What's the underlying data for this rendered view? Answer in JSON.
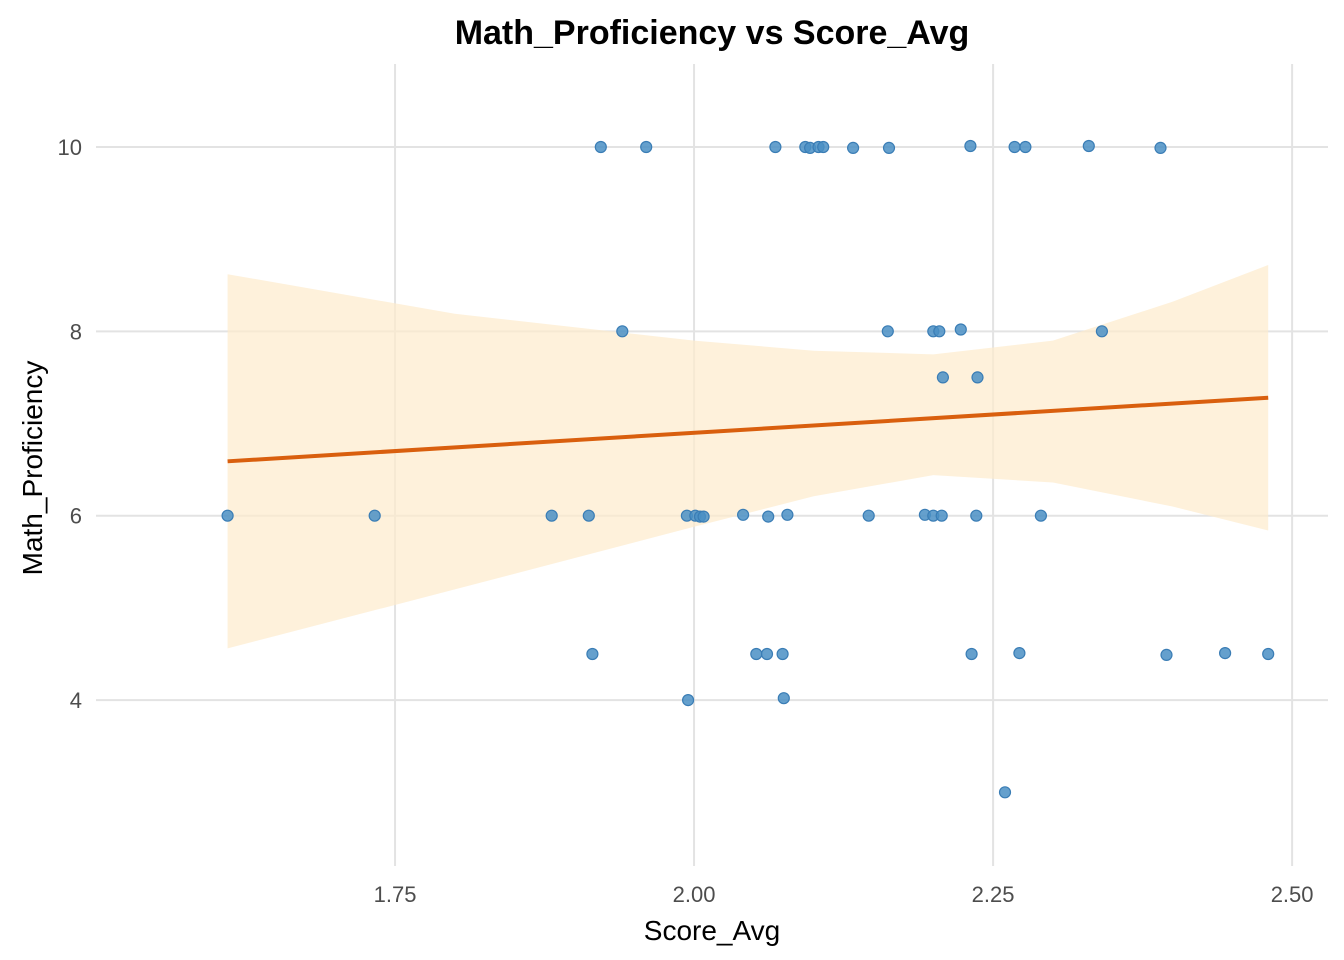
{
  "chart_data": {
    "type": "scatter",
    "title": "Math_Proficiency vs Score_Avg",
    "xlabel": "Score_Avg",
    "ylabel": "Math_Proficiency",
    "xlim": [
      1.5,
      2.53
    ],
    "ylim": [
      2.2,
      10.9
    ],
    "x_ticks": [
      1.75,
      2.0,
      2.25,
      2.5
    ],
    "x_tick_labels": [
      "1.75",
      "2.00",
      "2.25",
      "2.50"
    ],
    "y_ticks": [
      4,
      6,
      8,
      10
    ],
    "y_tick_labels": [
      "4",
      "6",
      "8",
      "10"
    ],
    "grid": true,
    "legend": "none",
    "colors": {
      "point": "#4a8fc4",
      "point_stroke": "#3a7db5",
      "trend_line": "#d95f0e",
      "confidence_band": "#fdebcc"
    },
    "points": [
      {
        "x": 1.922,
        "y": 10.0
      },
      {
        "x": 1.96,
        "y": 10.0
      },
      {
        "x": 2.068,
        "y": 10.0
      },
      {
        "x": 2.093,
        "y": 10.0
      },
      {
        "x": 2.097,
        "y": 9.99
      },
      {
        "x": 2.104,
        "y": 10.0
      },
      {
        "x": 2.108,
        "y": 10.0
      },
      {
        "x": 2.133,
        "y": 9.99
      },
      {
        "x": 2.163,
        "y": 9.99
      },
      {
        "x": 2.231,
        "y": 10.01
      },
      {
        "x": 2.268,
        "y": 10.0
      },
      {
        "x": 2.277,
        "y": 10.0
      },
      {
        "x": 2.33,
        "y": 10.01
      },
      {
        "x": 2.39,
        "y": 9.99
      },
      {
        "x": 1.94,
        "y": 8.0
      },
      {
        "x": 2.162,
        "y": 8.0
      },
      {
        "x": 2.2,
        "y": 8.0
      },
      {
        "x": 2.205,
        "y": 8.0
      },
      {
        "x": 2.223,
        "y": 8.02
      },
      {
        "x": 2.341,
        "y": 8.0
      },
      {
        "x": 2.208,
        "y": 7.5
      },
      {
        "x": 2.237,
        "y": 7.5
      },
      {
        "x": 1.61,
        "y": 6.0
      },
      {
        "x": 1.733,
        "y": 6.0
      },
      {
        "x": 1.881,
        "y": 6.0
      },
      {
        "x": 1.912,
        "y": 6.0
      },
      {
        "x": 1.994,
        "y": 6.0
      },
      {
        "x": 2.001,
        "y": 6.0
      },
      {
        "x": 2.005,
        "y": 5.99
      },
      {
        "x": 2.008,
        "y": 5.99
      },
      {
        "x": 2.041,
        "y": 6.01
      },
      {
        "x": 2.062,
        "y": 5.99
      },
      {
        "x": 2.078,
        "y": 6.01
      },
      {
        "x": 2.146,
        "y": 6.0
      },
      {
        "x": 2.193,
        "y": 6.01
      },
      {
        "x": 2.2,
        "y": 6.0
      },
      {
        "x": 2.207,
        "y": 6.0
      },
      {
        "x": 2.236,
        "y": 6.0
      },
      {
        "x": 2.29,
        "y": 6.0
      },
      {
        "x": 1.915,
        "y": 4.5
      },
      {
        "x": 2.052,
        "y": 4.5
      },
      {
        "x": 2.061,
        "y": 4.5
      },
      {
        "x": 2.074,
        "y": 4.5
      },
      {
        "x": 2.232,
        "y": 4.5
      },
      {
        "x": 2.272,
        "y": 4.51
      },
      {
        "x": 2.395,
        "y": 4.49
      },
      {
        "x": 2.444,
        "y": 4.51
      },
      {
        "x": 2.48,
        "y": 4.5
      },
      {
        "x": 1.995,
        "y": 4.0
      },
      {
        "x": 2.075,
        "y": 4.02
      },
      {
        "x": 2.26,
        "y": 3.0
      }
    ],
    "trend_line": {
      "method": "linear",
      "x": [
        1.61,
        2.48
      ],
      "y": [
        6.59,
        7.28
      ]
    },
    "confidence_band": {
      "x": [
        1.61,
        1.8,
        2.0,
        2.1,
        2.2,
        2.3,
        2.4,
        2.48
      ],
      "lower": [
        4.56,
        5.2,
        5.88,
        6.21,
        6.44,
        6.36,
        6.1,
        5.84
      ],
      "upper": [
        8.62,
        8.19,
        7.9,
        7.79,
        7.75,
        7.9,
        8.32,
        8.72
      ]
    }
  }
}
